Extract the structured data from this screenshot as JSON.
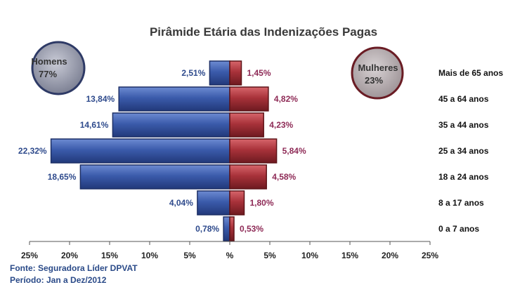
{
  "chart_data": {
    "type": "bar",
    "orientation": "horizontal-pyramid",
    "title": "Pirâmide Etária das Indenizações Pagas",
    "categories": [
      "Mais de 65 anos",
      "45 a 64 anos",
      "35 a 44 anos",
      "25 a 34 anos",
      "18 a 24 anos",
      "8 a 17 anos",
      "0 a 7 anos"
    ],
    "series": [
      {
        "values": [
          2.51,
          13.84,
          14.61,
          22.32,
          18.65,
          4.04,
          0.78
        ],
        "labels": [
          "2,51%",
          "13,84%",
          "14,61%",
          "22,32%",
          "18,65%",
          "4,04%",
          "0,78%"
        ],
        "color": "#3a5aa8",
        "side": "left"
      },
      {
        "values": [
          1.45,
          4.82,
          4.23,
          5.84,
          4.58,
          1.8,
          0.53
        ],
        "labels": [
          "1,45%",
          "4,82%",
          "4,23%",
          "5,84%",
          "4,58%",
          "1,80%",
          "0,53%"
        ],
        "color": "#a8323a",
        "side": "right"
      }
    ],
    "xlim": [
      -25,
      25
    ],
    "xticks": [
      "25%",
      "20%",
      "15%",
      "10%",
      "5%",
      "%",
      "5%",
      "10%",
      "15%",
      "20%",
      "25%"
    ],
    "grid": false,
    "legend_badges": [
      {
        "line1": "Homens",
        "line2": "77%",
        "color": "#8c8fa0"
      },
      {
        "line1": "Mulheres",
        "line2": "23%",
        "color": "#b0a7aa"
      }
    ]
  },
  "footer": {
    "source": "Fonte: Seguradora Líder DPVAT",
    "period": "Período: Jan a Dez/2012"
  }
}
